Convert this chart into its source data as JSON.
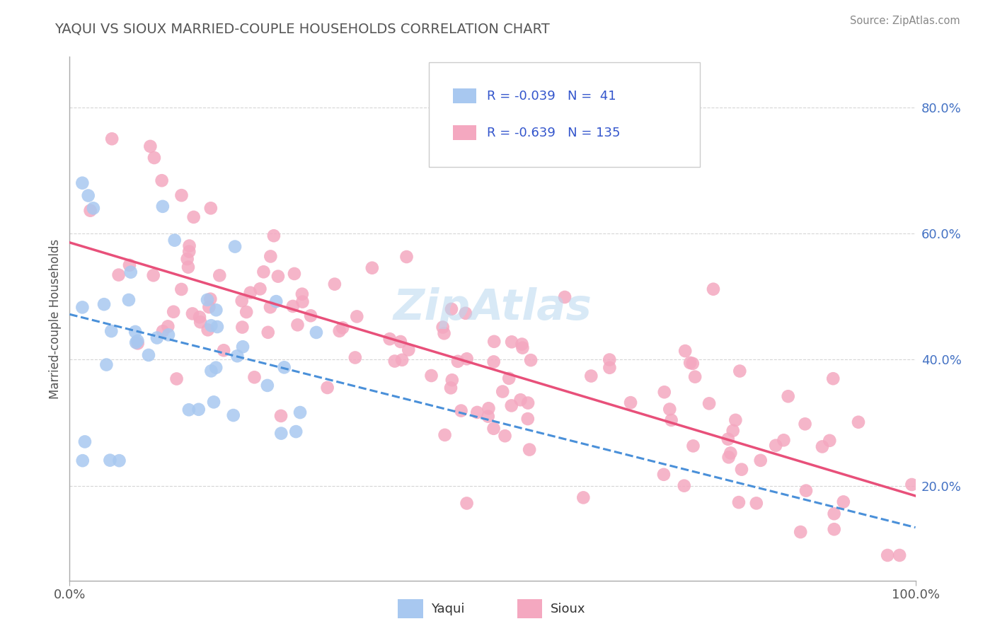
{
  "title": "YAQUI VS SIOUX MARRIED-COUPLE HOUSEHOLDS CORRELATION CHART",
  "source": "Source: ZipAtlas.com",
  "ylabel": "Married-couple Households",
  "xmin": 0.0,
  "xmax": 1.0,
  "ymin": 0.05,
  "ymax": 0.88,
  "yaqui_color": "#a8c8f0",
  "sioux_color": "#f4a8c0",
  "yaqui_line_color": "#4a90d9",
  "sioux_line_color": "#e8507a",
  "background_color": "#ffffff",
  "grid_color": "#cccccc",
  "title_color": "#555555",
  "legend_color": "#3355cc",
  "yaqui_R": -0.039,
  "yaqui_N": 41,
  "sioux_R": -0.639,
  "sioux_N": 135,
  "ytick_labels": [
    "20.0%",
    "40.0%",
    "60.0%",
    "80.0%"
  ],
  "ytick_values": [
    0.2,
    0.4,
    0.6,
    0.8
  ],
  "xtick_labels": [
    "0.0%",
    "100.0%"
  ],
  "xtick_values": [
    0.0,
    1.0
  ]
}
